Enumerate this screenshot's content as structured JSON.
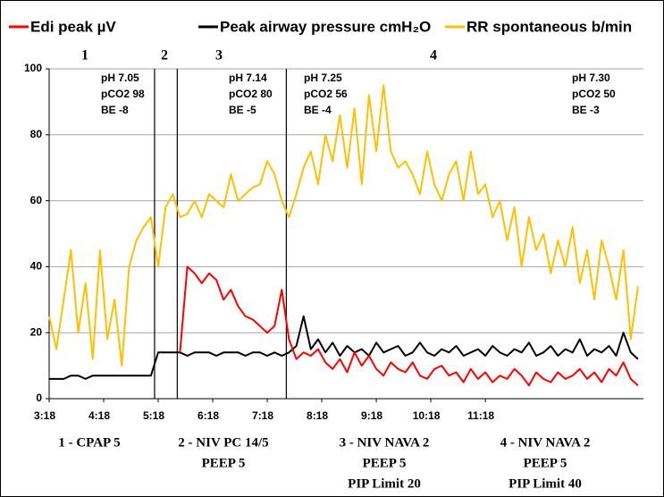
{
  "chart_data": {
    "type": "line",
    "x": [
      198,
      206,
      214,
      222,
      230,
      238,
      246,
      254,
      262,
      270,
      278,
      286,
      294,
      302,
      310,
      318,
      326,
      334,
      342,
      350,
      358,
      366,
      374,
      382,
      390,
      398,
      406,
      414,
      422,
      430,
      438,
      446,
      454,
      462,
      470,
      478,
      486,
      494,
      502,
      510,
      518,
      526,
      534,
      542,
      550,
      558,
      566,
      574,
      582,
      590,
      598,
      606,
      614,
      622,
      630,
      638,
      646,
      654,
      662,
      670,
      678,
      686,
      694,
      702,
      710,
      718,
      726,
      734,
      742,
      750,
      758,
      766,
      774,
      782,
      790,
      798,
      806,
      814,
      822,
      830,
      838,
      846
    ],
    "xlim": [
      198,
      852
    ],
    "xticks": [
      {
        "value": 198,
        "label": "3:18"
      },
      {
        "value": 258,
        "label": "4:18"
      },
      {
        "value": 318,
        "label": "5:18"
      },
      {
        "value": 378,
        "label": "6:18"
      },
      {
        "value": 438,
        "label": "7:18"
      },
      {
        "value": 498,
        "label": "8:18"
      },
      {
        "value": 558,
        "label": "9:18"
      },
      {
        "value": 618,
        "label": "10:18"
      },
      {
        "value": 678,
        "label": "11:18"
      }
    ],
    "ylim": [
      0,
      100
    ],
    "yticks": [
      0,
      20,
      40,
      60,
      80,
      100
    ],
    "grid": true,
    "series": [
      {
        "name": "Edi peak µV",
        "color": "#ff0000",
        "values": [
          null,
          null,
          null,
          null,
          null,
          null,
          null,
          null,
          null,
          null,
          null,
          null,
          null,
          null,
          null,
          null,
          null,
          null,
          14,
          40,
          38,
          35,
          38,
          36,
          30,
          33,
          28,
          25,
          24,
          22,
          20,
          22,
          33,
          18,
          12,
          14,
          13,
          15,
          11,
          9,
          12,
          8,
          14,
          10,
          13,
          9,
          7,
          11,
          9,
          8,
          11,
          7,
          6,
          9,
          10,
          7,
          8,
          5,
          9,
          6,
          8,
          5,
          7,
          6,
          9,
          7,
          4,
          8,
          6,
          5,
          8,
          6,
          7,
          9,
          6,
          8,
          5,
          9,
          7,
          11,
          6,
          4
        ]
      },
      {
        "name": "Peak airway pressure cmH₂O",
        "color": "#000000",
        "values": [
          6,
          6,
          6,
          7,
          7,
          6,
          7,
          7,
          7,
          7,
          7,
          7,
          7,
          7,
          7,
          14,
          14,
          14,
          14,
          13,
          14,
          14,
          14,
          13,
          14,
          14,
          14,
          13,
          14,
          14,
          13,
          14,
          13,
          14,
          16,
          25,
          15,
          18,
          14,
          17,
          13,
          16,
          14,
          15,
          13,
          17,
          14,
          15,
          16,
          13,
          14,
          17,
          14,
          13,
          15,
          14,
          16,
          13,
          14,
          15,
          13,
          16,
          14,
          13,
          15,
          14,
          17,
          13,
          14,
          16,
          13,
          15,
          14,
          18,
          13,
          15,
          14,
          16,
          13,
          20,
          14,
          12
        ]
      },
      {
        "name": "RR spontaneous b/min",
        "color": "#ffc000",
        "values": [
          25,
          15,
          30,
          45,
          20,
          35,
          12,
          45,
          18,
          30,
          10,
          40,
          48,
          52,
          55,
          40,
          58,
          62,
          55,
          56,
          60,
          55,
          62,
          60,
          58,
          68,
          60,
          62,
          64,
          65,
          72,
          68,
          60,
          55,
          62,
          70,
          75,
          65,
          80,
          72,
          86,
          70,
          88,
          65,
          92,
          75,
          95,
          75,
          70,
          72,
          68,
          62,
          75,
          65,
          60,
          68,
          72,
          60,
          75,
          62,
          65,
          55,
          60,
          48,
          58,
          40,
          55,
          45,
          50,
          38,
          48,
          40,
          52,
          35,
          45,
          30,
          48,
          40,
          30,
          45,
          18,
          34
        ]
      }
    ],
    "event_lines": [
      314,
      339,
      459
    ],
    "section_numbers": [
      "1",
      "2",
      "3",
      "4"
    ],
    "lab_annotations": [
      [
        "pH 7.05",
        "pCO2 98",
        "BE -8"
      ],
      [
        "pH 7.14",
        "pCO2 80",
        "BE -5"
      ],
      [
        "pH 7.25",
        "pCO2 56",
        "BE -4"
      ],
      [
        "pH 7.30",
        "pCO2 50",
        "BE -3"
      ]
    ],
    "phase_labels": [
      [
        "1 - CPAP 5"
      ],
      [
        "2 - NIV PC 14/5",
        "PEEP 5"
      ],
      [
        "3 - NIV NAVA 2",
        "PEEP 5",
        "PIP Limit 20"
      ],
      [
        "4 - NIV NAVA 2",
        "PEEP 5",
        "PIP Limit 40"
      ]
    ]
  }
}
